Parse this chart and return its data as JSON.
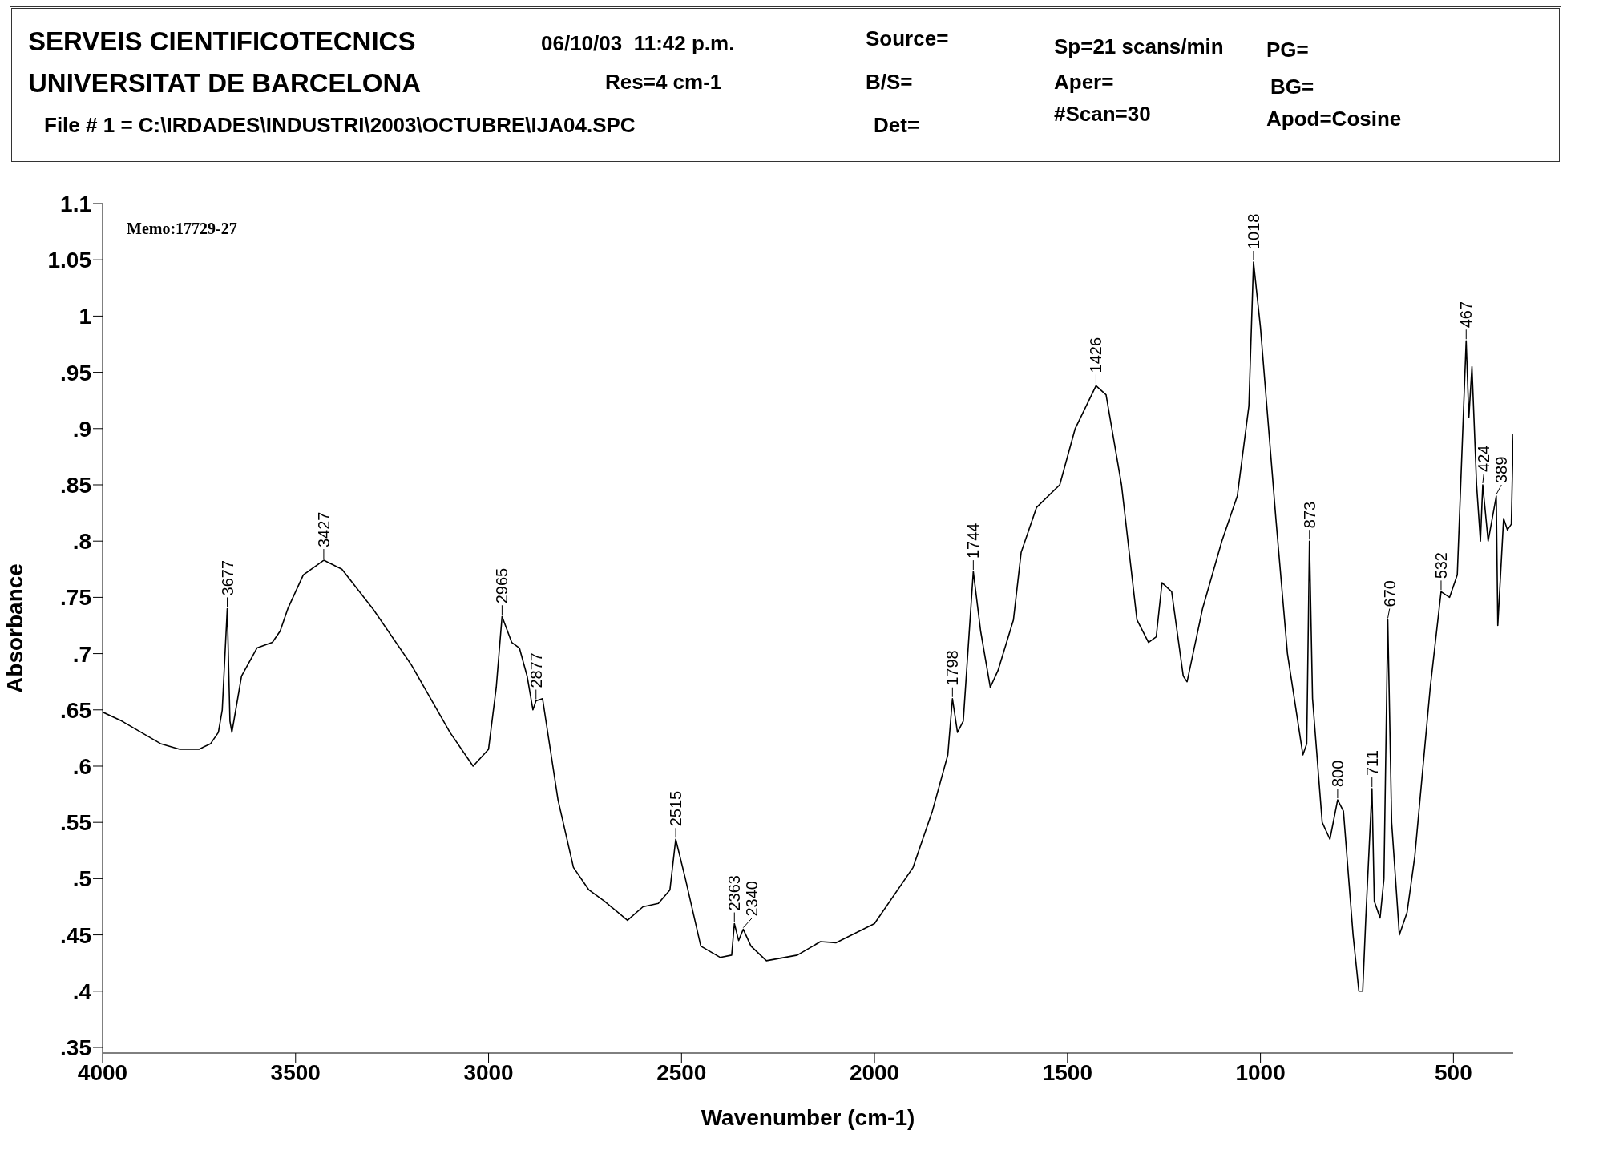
{
  "chart_data": {
    "type": "line",
    "title": "SERVEIS CIENTIFICOTECNICS",
    "subtitle": "UNIVERSITAT DE BARCELONA",
    "xlabel": "Wavenumber (cm-1)",
    "ylabel": "Absorbance",
    "annotations": [
      "06/10/03  11:42 p.m.",
      "Res=4 cm-1",
      "File # 1 = C:\\IRDADES\\INDUSTRI\\2003\\OCTUBRE\\IJA04.SPC",
      "Source=",
      "B/S=",
      "Det=",
      "Sp=21 scans/min",
      "Aper=",
      "#Scan=30",
      "PG=",
      "BG=",
      "Apod=Cosine",
      "Memo:17729-27",
      {
        "text": "3677",
        "x": 3677,
        "y": 0.74
      },
      {
        "text": "3427",
        "x": 3427,
        "y": 0.783
      },
      {
        "text": "2965",
        "x": 2965,
        "y": 0.733
      },
      {
        "text": "2877",
        "x": 2877,
        "y": 0.658
      },
      {
        "text": "2515",
        "x": 2515,
        "y": 0.535
      },
      {
        "text": "2363",
        "x": 2363,
        "y": 0.46
      },
      {
        "text": "2340",
        "x": 2340,
        "y": 0.455
      },
      {
        "text": "1798",
        "x": 1798,
        "y": 0.66
      },
      {
        "text": "1744",
        "x": 1744,
        "y": 0.773
      },
      {
        "text": "1426",
        "x": 1426,
        "y": 0.938
      },
      {
        "text": "1018",
        "x": 1018,
        "y": 1.048
      },
      {
        "text": "873",
        "x": 873,
        "y": 0.8
      },
      {
        "text": "800",
        "x": 800,
        "y": 0.57
      },
      {
        "text": "711",
        "x": 711,
        "y": 0.58
      },
      {
        "text": "670",
        "x": 670,
        "y": 0.73
      },
      {
        "text": "532",
        "x": 532,
        "y": 0.755
      },
      {
        "text": "467",
        "x": 467,
        "y": 0.978
      },
      {
        "text": "424",
        "x": 424,
        "y": 0.85
      },
      {
        "text": "389",
        "x": 389,
        "y": 0.84
      }
    ],
    "series": [
      {
        "color": "#000000",
        "x": [
          4000,
          3950,
          3900,
          3850,
          3800,
          3750,
          3720,
          3700,
          3690,
          3677,
          3670,
          3665,
          3650,
          3640,
          3600,
          3560,
          3540,
          3520,
          3480,
          3427,
          3380,
          3300,
          3200,
          3100,
          3040,
          3000,
          2980,
          2965,
          2940,
          2920,
          2900,
          2885,
          2877,
          2860,
          2820,
          2780,
          2740,
          2700,
          2640,
          2600,
          2560,
          2530,
          2515,
          2490,
          2450,
          2400,
          2370,
          2363,
          2352,
          2340,
          2320,
          2280,
          2200,
          2140,
          2100,
          2000,
          1900,
          1850,
          1810,
          1798,
          1785,
          1770,
          1744,
          1725,
          1700,
          1680,
          1640,
          1620,
          1580,
          1520,
          1480,
          1426,
          1400,
          1360,
          1320,
          1290,
          1270,
          1255,
          1230,
          1200,
          1190,
          1150,
          1100,
          1060,
          1030,
          1018,
          1000,
          960,
          930,
          890,
          880,
          873,
          865,
          840,
          820,
          800,
          785,
          760,
          745,
          735,
          727,
          711,
          705,
          690,
          680,
          670,
          660,
          640,
          620,
          600,
          560,
          532,
          510,
          490,
          467,
          460,
          452,
          440,
          430,
          424,
          410,
          389,
          385,
          370,
          360,
          350,
          345
        ],
        "values": [
          0.648,
          0.64,
          0.63,
          0.62,
          0.615,
          0.615,
          0.62,
          0.63,
          0.65,
          0.74,
          0.64,
          0.63,
          0.66,
          0.68,
          0.705,
          0.71,
          0.72,
          0.74,
          0.77,
          0.783,
          0.775,
          0.74,
          0.69,
          0.63,
          0.6,
          0.615,
          0.67,
          0.733,
          0.71,
          0.705,
          0.68,
          0.65,
          0.658,
          0.66,
          0.57,
          0.51,
          0.49,
          0.48,
          0.463,
          0.475,
          0.478,
          0.49,
          0.535,
          0.5,
          0.44,
          0.43,
          0.432,
          0.46,
          0.445,
          0.455,
          0.44,
          0.427,
          0.432,
          0.444,
          0.443,
          0.46,
          0.51,
          0.56,
          0.61,
          0.66,
          0.63,
          0.64,
          0.773,
          0.72,
          0.67,
          0.685,
          0.73,
          0.79,
          0.83,
          0.85,
          0.9,
          0.938,
          0.93,
          0.85,
          0.73,
          0.71,
          0.715,
          0.763,
          0.755,
          0.68,
          0.675,
          0.74,
          0.8,
          0.84,
          0.92,
          1.048,
          0.99,
          0.82,
          0.7,
          0.61,
          0.62,
          0.8,
          0.66,
          0.55,
          0.535,
          0.57,
          0.56,
          0.45,
          0.4,
          0.4,
          0.465,
          0.58,
          0.48,
          0.465,
          0.5,
          0.73,
          0.55,
          0.45,
          0.47,
          0.52,
          0.67,
          0.755,
          0.75,
          0.77,
          0.978,
          0.91,
          0.955,
          0.85,
          0.8,
          0.85,
          0.8,
          0.84,
          0.725,
          0.82,
          0.81,
          0.815,
          0.895
        ]
      }
    ],
    "xlim": [
      4000,
      345
    ],
    "xticks": [
      4000,
      3500,
      3000,
      2500,
      2000,
      1500,
      1000,
      500
    ],
    "ylim": [
      0.345,
      1.1
    ],
    "yticks": [
      {
        "value": 0.35,
        "label": ".35"
      },
      {
        "value": 0.4,
        "label": ".4"
      },
      {
        "value": 0.45,
        "label": ".45"
      },
      {
        "value": 0.5,
        "label": ".5"
      },
      {
        "value": 0.55,
        "label": ".55"
      },
      {
        "value": 0.6,
        "label": ".6"
      },
      {
        "value": 0.65,
        "label": ".65"
      },
      {
        "value": 0.7,
        "label": ".7"
      },
      {
        "value": 0.75,
        "label": ".75"
      },
      {
        "value": 0.8,
        "label": ".8"
      },
      {
        "value": 0.85,
        "label": ".85"
      },
      {
        "value": 0.9,
        "label": ".9"
      },
      {
        "value": 0.95,
        "label": ".95"
      },
      1,
      1.05,
      1.1
    ],
    "grid": false,
    "marker": "none",
    "line_style": "solid"
  }
}
